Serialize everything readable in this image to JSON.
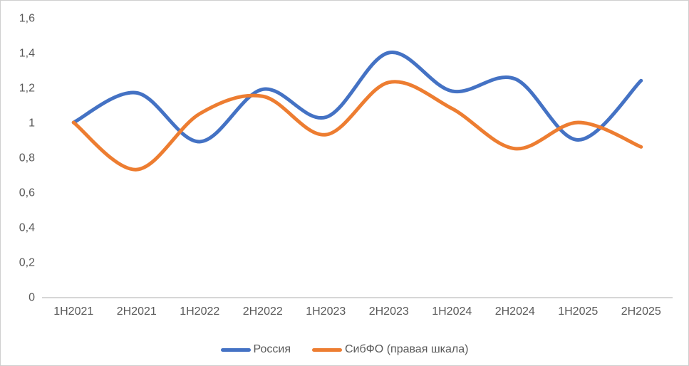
{
  "chart_data": {
    "type": "line",
    "title": "",
    "smooth": true,
    "grid": false,
    "legend_position": "bottom",
    "categories": [
      "1H2021",
      "2H2021",
      "1H2022",
      "2H2022",
      "1H2023",
      "2H2023",
      "1H2024",
      "2H2024",
      "1H2025",
      "2H2025"
    ],
    "series": [
      {
        "name": "Россия",
        "color": "#4472C4",
        "values": [
          1.0,
          1.17,
          0.89,
          1.19,
          1.03,
          1.4,
          1.18,
          1.25,
          0.9,
          1.24
        ]
      },
      {
        "name": "СибФО (правая шкала)",
        "color": "#ED7D31",
        "values": [
          1.0,
          0.73,
          1.05,
          1.15,
          0.93,
          1.23,
          1.08,
          0.85,
          1.0,
          0.86
        ]
      }
    ],
    "y_axis": {
      "tick_labels": [
        "1,6",
        "1,4",
        "1,2",
        "1",
        "0,8",
        "0,6",
        "0,4",
        "0,2",
        "0"
      ],
      "tick_values": [
        1.6,
        1.4,
        1.2,
        1.0,
        0.8,
        0.6,
        0.4,
        0.2,
        0
      ],
      "min": 0,
      "max": 1.6,
      "decimal_separator": ","
    },
    "x_axis": {
      "tick_labels": [
        "1H2021",
        "2H2021",
        "1H2022",
        "2H2022",
        "1H2023",
        "2H2023",
        "1H2024",
        "2H2024",
        "1H2025",
        "2H2025"
      ]
    }
  },
  "colors": {
    "series_blue": "#4472C4",
    "series_orange": "#ED7D31",
    "axis_line": "#C9C9C9",
    "tick_text": "#595959",
    "frame_border": "#cfcfcf",
    "background": "#FFFFFF"
  }
}
